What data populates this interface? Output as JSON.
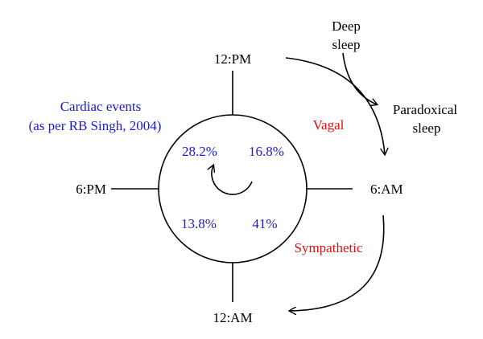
{
  "colors": {
    "ink": "#000000",
    "stats": "#1a1adb",
    "phase": "#e01010"
  },
  "clock": {
    "top": "12:PM",
    "left": "6:PM",
    "right": "6:AM",
    "bottom": "12:AM"
  },
  "cardiac_events": {
    "title_line1": "Cardiac events",
    "title_line2": "(as per RB Singh, 2004)",
    "quadrants": {
      "top_left": "28.2%",
      "top_right": "16.8%",
      "bottom_left": "13.8%",
      "bottom_right": "41%"
    }
  },
  "phases": {
    "vagal": "Vagal",
    "sympathetic": "Sympathetic"
  },
  "sleep": {
    "deep_line1": "Deep",
    "deep_line2": "sleep",
    "paradoxical_line1": "Paradoxical",
    "paradoxical_line2": "sleep"
  }
}
